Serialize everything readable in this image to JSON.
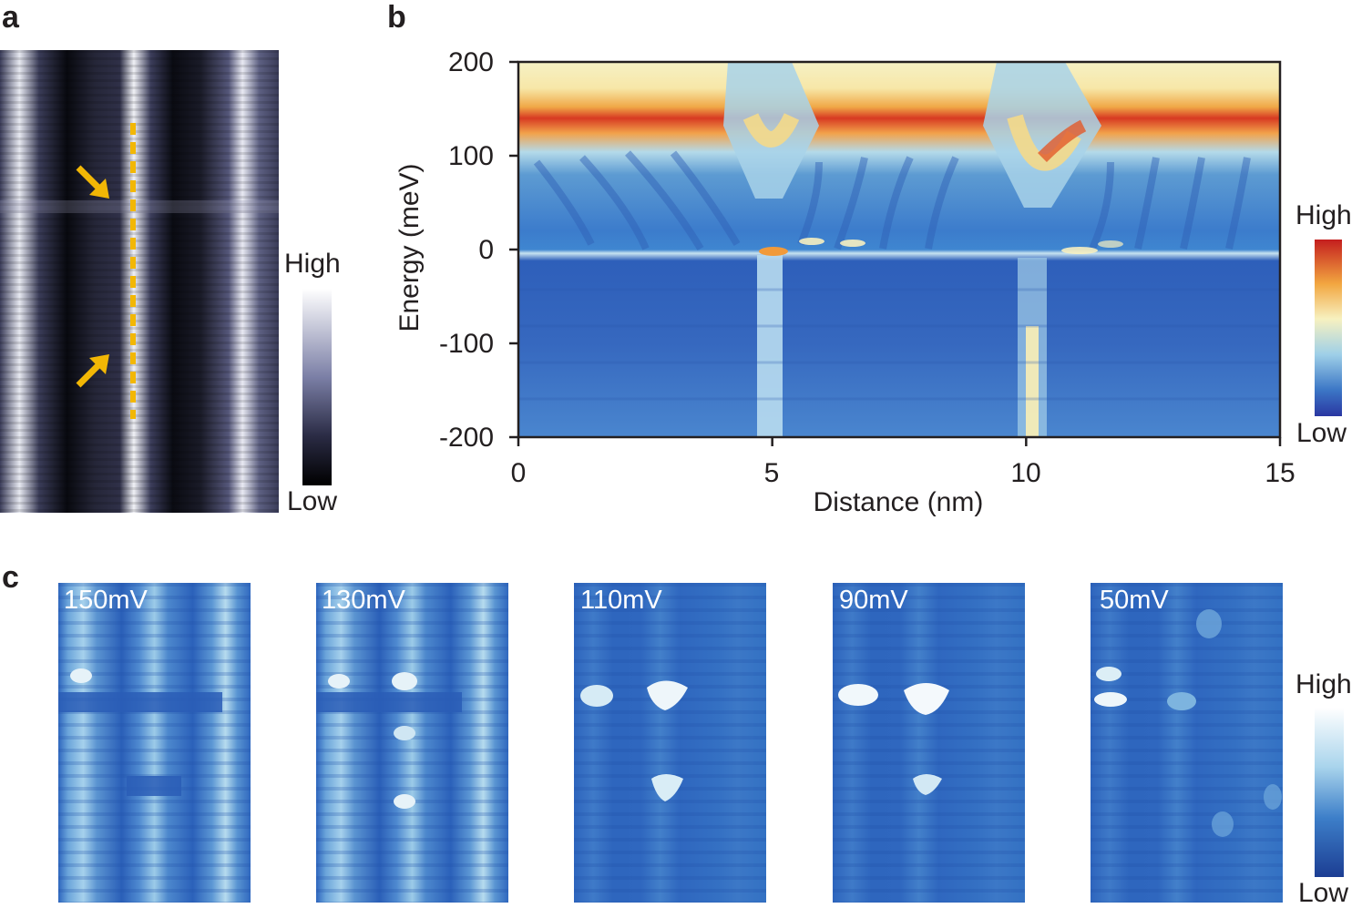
{
  "panel_a": {
    "letter": "a",
    "colorbar": {
      "high": "High",
      "low": "Low"
    }
  },
  "panel_b": {
    "letter": "b",
    "colorbar": {
      "high": "High",
      "low": "Low"
    }
  },
  "panel_c": {
    "letter": "c",
    "maps": [
      {
        "label": "150mV"
      },
      {
        "label": "130mV"
      },
      {
        "label": "110mV"
      },
      {
        "label": "90mV"
      },
      {
        "label": "50mV"
      }
    ],
    "colorbar": {
      "high": "High",
      "low": "Low"
    }
  },
  "colors": {
    "marker_yellow": "#f2b705",
    "map_blue": "#2f6fc4",
    "stm_dark": "#0b0c16"
  },
  "chart_data": {
    "type": "heatmap",
    "xlabel": "Distance (nm)",
    "ylabel": "Energy (meV)",
    "xlim": [
      0,
      15
    ],
    "ylim": [
      -200,
      200
    ],
    "xticks": [
      "0",
      "5",
      "10",
      "15"
    ],
    "yticks": [
      "200",
      "100",
      "0",
      "-100",
      "-200"
    ],
    "colorscale": [
      "#2a3ea8",
      "#3a78c8",
      "#a9d3e8",
      "#f7f3bd",
      "#f5a23c",
      "#d1271d"
    ],
    "features": [
      {
        "name": "high-intensity band",
        "x": [
          0,
          4,
          5,
          9.3,
          10,
          15
        ],
        "y": [
          145,
          145,
          115,
          145,
          90,
          145
        ]
      },
      {
        "name": "bright vertical stripe",
        "x": 5,
        "y_range": [
          -200,
          0
        ]
      },
      {
        "name": "bright vertical stripe",
        "x": 10.2,
        "y_range": [
          -200,
          0
        ]
      }
    ]
  }
}
